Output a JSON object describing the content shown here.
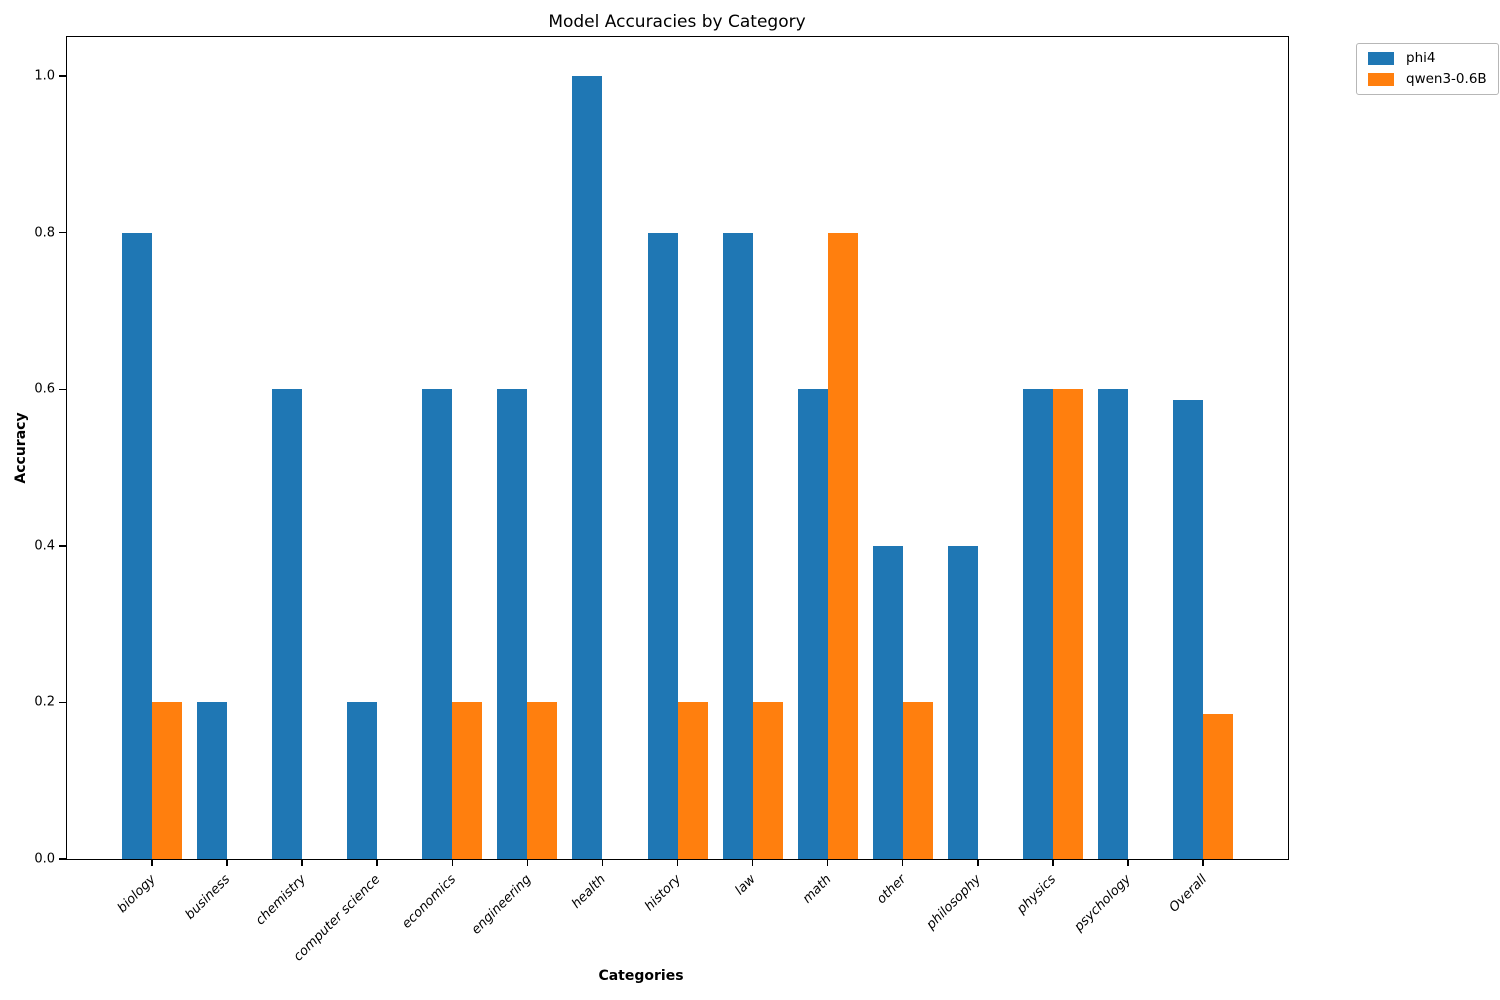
{
  "chart_data": {
    "type": "bar",
    "title": "Model Accuracies by Category",
    "xlabel": "Categories",
    "ylabel": "Accuracy",
    "categories": [
      "biology",
      "business",
      "chemistry",
      "computer science",
      "economics",
      "engineering",
      "health",
      "history",
      "law",
      "math",
      "other",
      "philosophy",
      "physics",
      "psychology",
      "Overall"
    ],
    "series": [
      {
        "name": "phi4",
        "color": "#1f77b4",
        "values": [
          0.8,
          0.2,
          0.6,
          0.2,
          0.6,
          0.6,
          1.0,
          0.8,
          0.8,
          0.6,
          0.4,
          0.4,
          0.6,
          0.6,
          0.5857
        ]
      },
      {
        "name": "qwen3-0.6B",
        "color": "#ff7f0e",
        "values": [
          0.2,
          0.0,
          0.0,
          0.0,
          0.2,
          0.2,
          0.0,
          0.2,
          0.2,
          0.8,
          0.2,
          0.0,
          0.6,
          0.0,
          0.1857
        ]
      }
    ],
    "ylim": [
      0,
      1.05
    ],
    "ytick_labels": [
      "0.0",
      "0.2",
      "0.4",
      "0.6",
      "0.8",
      "1.0"
    ],
    "grid": false,
    "legend_position": "outside-upper-right",
    "x_tick_style": "italic, rotated 45deg",
    "bar_group": "two bars per category, side by side"
  }
}
